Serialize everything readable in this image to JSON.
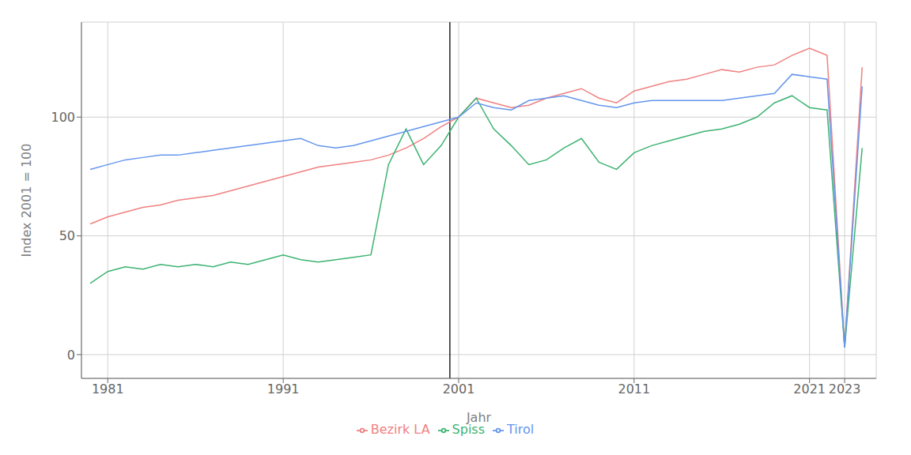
{
  "chart_data": {
    "type": "line",
    "xlabel": "Jahr",
    "ylabel": "Index 2001 = 100",
    "x": [
      1980,
      1981,
      1982,
      1983,
      1984,
      1985,
      1986,
      1987,
      1988,
      1989,
      1990,
      1991,
      1992,
      1993,
      1994,
      1995,
      1996,
      1997,
      1998,
      1999,
      2000,
      2001,
      2002,
      2003,
      2004,
      2005,
      2006,
      2007,
      2008,
      2009,
      2010,
      2011,
      2012,
      2013,
      2014,
      2015,
      2016,
      2017,
      2018,
      2019,
      2020,
      2021,
      2022,
      2023,
      2024
    ],
    "series": [
      {
        "name": "Bezirk LA",
        "color": "#F08080",
        "values": [
          55,
          58,
          60,
          62,
          63,
          65,
          66,
          67,
          69,
          71,
          73,
          75,
          77,
          79,
          80,
          81,
          82,
          84,
          87,
          91,
          96,
          100,
          108,
          106,
          104,
          105,
          108,
          110,
          112,
          108,
          106,
          111,
          113,
          115,
          116,
          118,
          120,
          119,
          121,
          122,
          126,
          129,
          126,
          3,
          121
        ]
      },
      {
        "name": "Spiss",
        "color": "#3CB371",
        "values": [
          30,
          35,
          37,
          36,
          38,
          37,
          38,
          37,
          39,
          38,
          40,
          42,
          40,
          39,
          40,
          41,
          42,
          80,
          95,
          80,
          88,
          100,
          108,
          95,
          88,
          80,
          82,
          87,
          91,
          81,
          78,
          85,
          88,
          90,
          92,
          94,
          95,
          97,
          100,
          106,
          109,
          104,
          103,
          3,
          87
        ]
      },
      {
        "name": "Tirol",
        "color": "#6495ED",
        "values": [
          78,
          80,
          82,
          83,
          84,
          84,
          85,
          86,
          87,
          88,
          89,
          90,
          91,
          88,
          87,
          88,
          90,
          92,
          94,
          96,
          98,
          100,
          106,
          104,
          103,
          107,
          108,
          109,
          107,
          105,
          104,
          106,
          107,
          107,
          107,
          107,
          107,
          108,
          109,
          110,
          118,
          117,
          116,
          3,
          113
        ]
      }
    ],
    "xlim": [
      1979.5,
      2024.8
    ],
    "xticks": [
      1981,
      1991,
      2001,
      2011,
      2021,
      2023
    ],
    "ylim": [
      -10,
      140
    ],
    "yticks": [
      0,
      50,
      100
    ],
    "vline": 2000.5,
    "grid": true,
    "legend": "bottom"
  }
}
